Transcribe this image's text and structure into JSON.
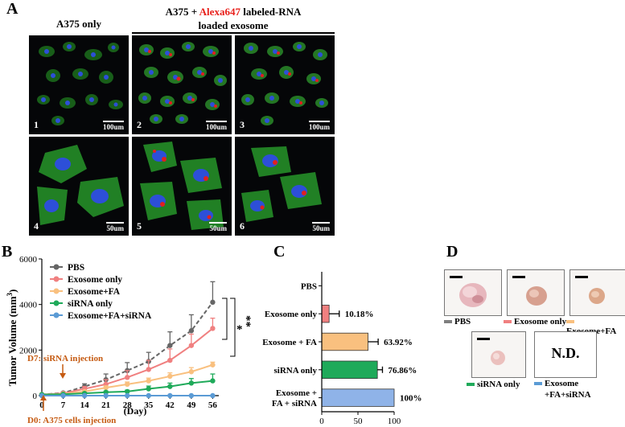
{
  "panels": {
    "A": {
      "letter": "A",
      "header_left": "A375 only",
      "header_right_prefix": "A375 + ",
      "header_right_red": "Alexa647",
      "header_right_suffix": " labeled-RNA",
      "header_right_line2": "loaded  exosome",
      "images": [
        {
          "num": "1",
          "scale": "100um"
        },
        {
          "num": "2",
          "scale": "100um"
        },
        {
          "num": "3",
          "scale": "100um"
        },
        {
          "num": "4",
          "scale": "50um"
        },
        {
          "num": "5",
          "scale": "50um"
        },
        {
          "num": "6",
          "scale": "50um"
        }
      ]
    },
    "B": {
      "letter": "B",
      "annot_d7": "D7: siRNA injection",
      "annot_d0": "D0: A375 cells injection",
      "sig_single": "*",
      "sig_double": "**"
    },
    "C": {
      "letter": "C"
    },
    "D": {
      "letter": "D",
      "labels": [
        "PBS",
        "Exosome only",
        "Exosome+FA",
        "siRNA only",
        "Exosome",
        "+FA+siRNA"
      ],
      "nd": "N.D.",
      "colors": [
        "#7f7f7f",
        "#f08080",
        "#f9c07f",
        "#1faa5a",
        "#5b9bd5"
      ]
    }
  },
  "chart_data": [
    {
      "type": "line",
      "title": "",
      "xlabel": "(Day)",
      "ylabel_main": "Tumor Volume (mm",
      "ylabel_sup": "3",
      "ylabel_end": ")",
      "x": [
        0,
        7,
        14,
        21,
        28,
        35,
        42,
        49,
        56
      ],
      "xticks": [
        "0",
        "7",
        "14",
        "21",
        "28",
        "35",
        "42",
        "49",
        "56"
      ],
      "yticks": [
        "0",
        "2000",
        "4000",
        "6000"
      ],
      "ylim": [
        0,
        6000
      ],
      "xlim": [
        0,
        58
      ],
      "legend": "top-left",
      "series": [
        {
          "name": "PBS",
          "color": "#666666",
          "dashed": true,
          "values": [
            50,
            120,
            400,
            700,
            1100,
            1500,
            2200,
            2850,
            4100
          ],
          "errors": [
            20,
            40,
            120,
            250,
            350,
            400,
            600,
            700,
            900
          ]
        },
        {
          "name": "Exosome only",
          "color": "#f08080",
          "dashed": false,
          "values": [
            50,
            100,
            300,
            500,
            800,
            1150,
            1550,
            2200,
            2950
          ],
          "errors": [
            20,
            30,
            100,
            200,
            300,
            400,
            500,
            500,
            450
          ]
        },
        {
          "name": "Exosome+FA",
          "color": "#f9c07f",
          "dashed": false,
          "values": [
            50,
            80,
            180,
            350,
            500,
            650,
            850,
            1050,
            1350
          ],
          "errors": [
            10,
            20,
            50,
            80,
            100,
            120,
            150,
            180,
            120
          ]
        },
        {
          "name": "siRNA only",
          "color": "#1faa5a",
          "dashed": false,
          "values": [
            50,
            60,
            100,
            150,
            180,
            300,
            400,
            550,
            650
          ],
          "errors": [
            10,
            15,
            30,
            50,
            60,
            120,
            150,
            200,
            300
          ]
        },
        {
          "name": "Exosome+FA+siRNA",
          "color": "#5b9bd5",
          "dashed": false,
          "values": [
            0,
            0,
            0,
            0,
            0,
            0,
            0,
            0,
            0
          ],
          "errors": [
            0,
            0,
            0,
            0,
            0,
            0,
            0,
            0,
            0
          ]
        }
      ]
    },
    {
      "type": "bar",
      "orientation": "horizontal",
      "title": "",
      "categories": [
        "PBS",
        "Exosome only",
        "Exosome + FA",
        "siRNA only",
        "Exosome +\nFA + siRNA"
      ],
      "values": [
        0,
        10.18,
        63.92,
        76.86,
        100
      ],
      "errors": [
        0,
        14,
        14,
        7,
        0
      ],
      "value_labels": [
        "",
        "10.18%",
        "63.92%",
        "76.86%",
        "100%"
      ],
      "colors": [
        "#7f7f7f",
        "#f08080",
        "#f9c07f",
        "#1faa5a",
        "#8fb3e8"
      ],
      "xticks": [
        "0",
        "50",
        "100"
      ],
      "xlim": [
        0,
        100
      ]
    }
  ]
}
